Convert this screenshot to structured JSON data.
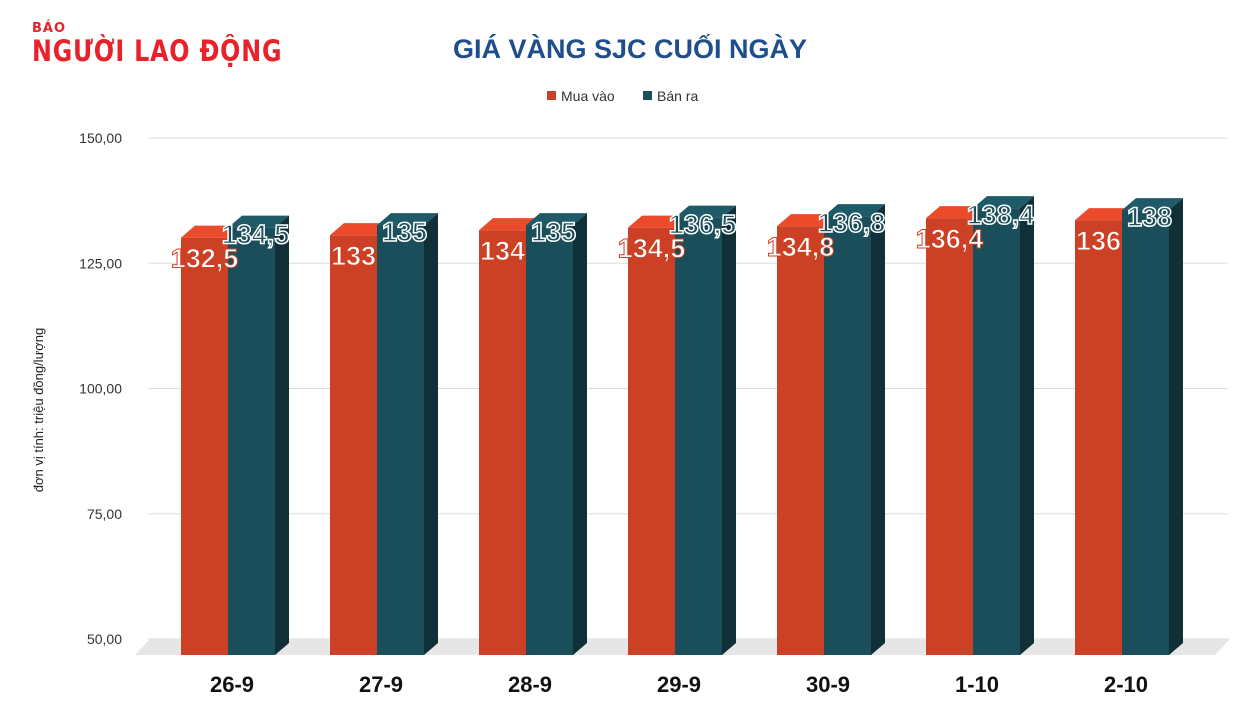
{
  "logo": {
    "small": "BÁO",
    "big": "NGƯỜI LAO ĐỘNG"
  },
  "chart_data": {
    "type": "bar",
    "title": "GIÁ VÀNG SJC CUỐI NGÀY",
    "ylabel": "đơn vị tính: triệu đồng/lượng",
    "xlabel": "",
    "categories": [
      "26-9",
      "27-9",
      "28-9",
      "29-9",
      "30-9",
      "1-10",
      "2-10"
    ],
    "series": [
      {
        "name": "Mua vào",
        "color": "#cc4125",
        "values": [
          132.5,
          133,
          134,
          134.5,
          134.8,
          136.4,
          136
        ],
        "labels": [
          "132,5",
          "133",
          "134",
          "134,5",
          "134,8",
          "136,4",
          "136"
        ]
      },
      {
        "name": "Bán ra",
        "color": "#1a4e5a",
        "values": [
          134.5,
          135,
          135,
          136.5,
          136.8,
          138.4,
          138
        ],
        "labels": [
          "134,5",
          "135",
          "135",
          "136,5",
          "136,8",
          "138,4",
          "138"
        ]
      }
    ],
    "ylim": [
      50,
      150
    ],
    "yticks": [
      "50,00",
      "75,00",
      "100,00",
      "125,00",
      "150,00"
    ],
    "ytick_values": [
      50,
      75,
      100,
      125,
      150
    ],
    "grid": true,
    "legend": "top",
    "style": "3d-column"
  }
}
